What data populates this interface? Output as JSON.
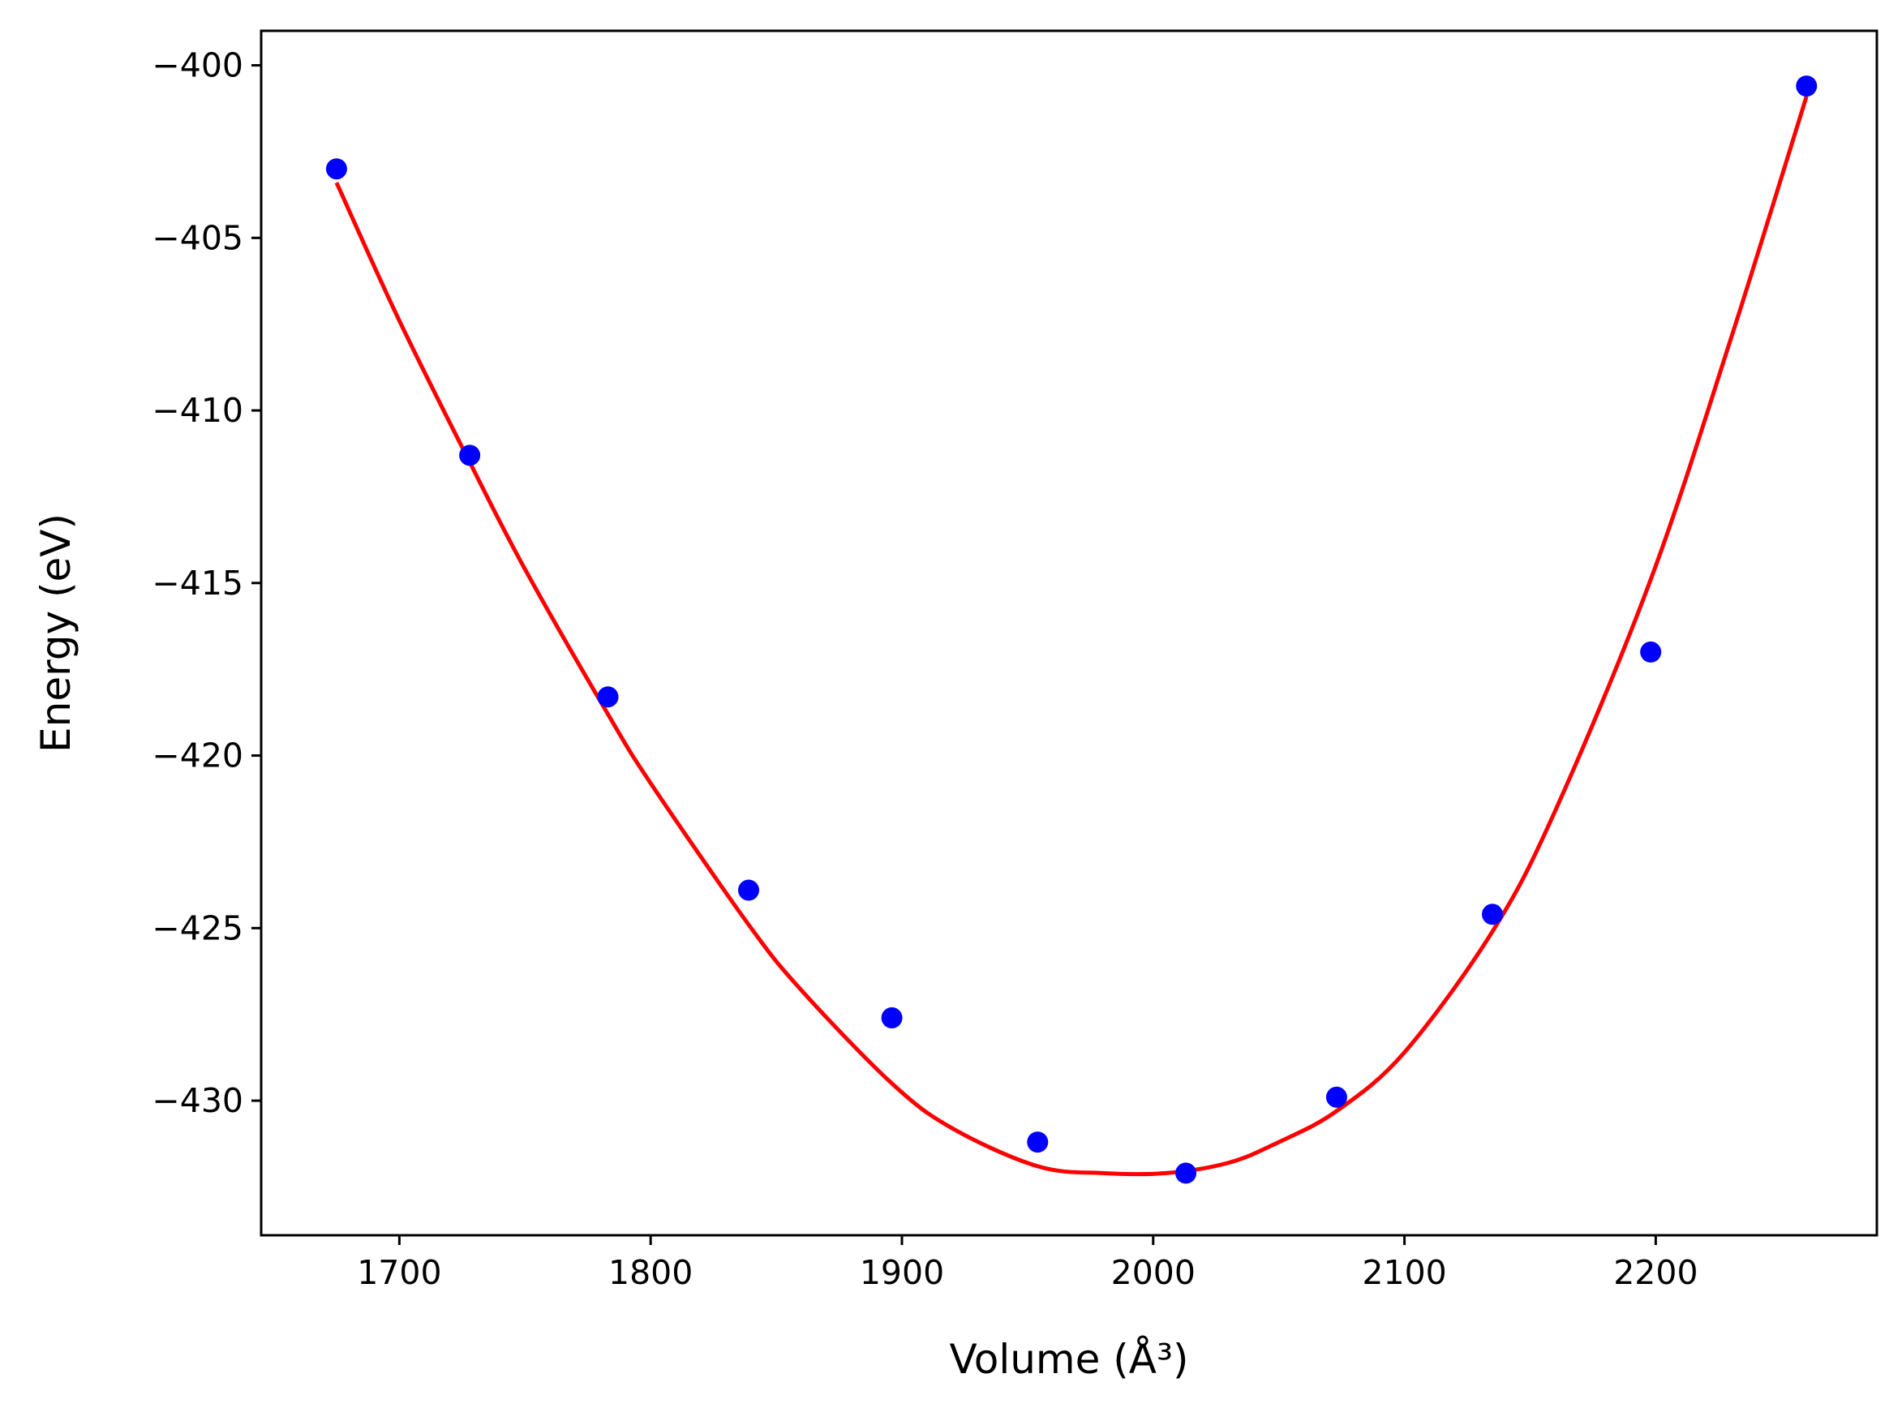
{
  "chart_data": {
    "type": "scatter",
    "xlabel": "Volume (Å³)",
    "ylabel": "Energy (eV)",
    "xlim": [
      1645,
      2288
    ],
    "ylim": [
      -433.9,
      -399.0
    ],
    "xticks": [
      1700,
      1800,
      1900,
      2000,
      2100,
      2200
    ],
    "xtick_labels": [
      "1700",
      "1800",
      "1900",
      "2000",
      "2100",
      "2200"
    ],
    "yticks": [
      -400,
      -405,
      -410,
      -415,
      -420,
      -425,
      -430
    ],
    "ytick_labels": [
      "−400",
      "−405",
      "−410",
      "−415",
      "−420",
      "−425",
      "−430"
    ],
    "grid": false,
    "legend": "none",
    "series": [
      {
        "kind": "points",
        "color": "#0000ff",
        "x": [
          1675,
          1728,
          1783,
          1839,
          1896,
          1954,
          2013,
          2073,
          2135,
          2198,
          2260
        ],
        "y": [
          -403.0,
          -411.3,
          -418.3,
          -423.9,
          -427.6,
          -431.2,
          -432.1,
          -429.9,
          -424.6,
          -417.0,
          -400.6
        ]
      },
      {
        "kind": "fit",
        "color": "#ff0000",
        "x": [
          1675,
          1700,
          1728,
          1750,
          1783,
          1800,
          1839,
          1860,
          1896,
          1920,
          1954,
          1980,
          2005,
          2030,
          2050,
          2073,
          2100,
          2135,
          2160,
          2198,
          2230,
          2260
        ],
        "y": [
          -403.4,
          -407.4,
          -411.5,
          -414.6,
          -418.8,
          -420.8,
          -424.9,
          -426.8,
          -429.5,
          -430.8,
          -431.9,
          -432.1,
          -432.1,
          -431.8,
          -431.2,
          -430.3,
          -428.6,
          -425.1,
          -421.6,
          -414.9,
          -407.9,
          -400.9
        ]
      }
    ]
  }
}
